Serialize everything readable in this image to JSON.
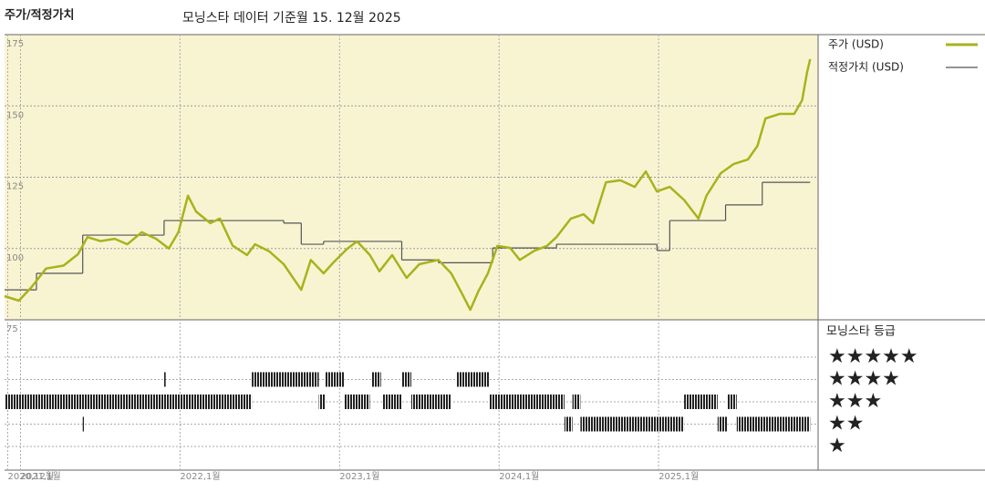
{
  "chart_data": {
    "type": "line",
    "title": "주가/적정가치",
    "subtitle": "모닝스타 데이터 기준월 15. 12월 2025",
    "xlim": [
      2020.9,
      2026.0
    ],
    "xticks": [
      {
        "value": 2020.92,
        "label": "2020,12월"
      },
      {
        "value": 2021.0,
        "label": "2021,1월"
      },
      {
        "value": 2022.0,
        "label": "2022,1월"
      },
      {
        "value": 2023.0,
        "label": "2023,1월"
      },
      {
        "value": 2024.0,
        "label": "2024,1월"
      },
      {
        "value": 2025.0,
        "label": "2025,1월"
      }
    ],
    "ylim": [
      75,
      175
    ],
    "yticks": [
      175,
      150,
      125,
      100,
      75
    ],
    "grid": true,
    "background": "#f8f4d2",
    "series": [
      {
        "name": "주가 (USD)",
        "color": "#a9b21c",
        "x": [
          2020.9,
          2020.99,
          2021.07,
          2021.16,
          2021.27,
          2021.36,
          2021.42,
          2021.5,
          2021.59,
          2021.67,
          2021.76,
          2021.85,
          2021.93,
          2021.99,
          2022.05,
          2022.1,
          2022.19,
          2022.25,
          2022.33,
          2022.42,
          2022.47,
          2022.56,
          2022.65,
          2022.76,
          2022.82,
          2022.9,
          2022.96,
          2023.05,
          2023.11,
          2023.19,
          2023.25,
          2023.33,
          2023.42,
          2023.5,
          2023.62,
          2023.7,
          2023.76,
          2023.82,
          2023.87,
          2023.93,
          2023.99,
          2024.07,
          2024.13,
          2024.22,
          2024.3,
          2024.36,
          2024.45,
          2024.53,
          2024.59,
          2024.67,
          2024.76,
          2024.85,
          2024.92,
          2024.99,
          2025.07,
          2025.16,
          2025.25,
          2025.3,
          2025.39,
          2025.47,
          2025.56,
          2025.62,
          2025.67,
          2025.76,
          2025.85,
          2025.9,
          2025.93,
          2025.95
        ],
        "values": [
          83.3,
          81.7,
          86.5,
          93,
          94,
          98,
          104,
          102.6,
          103.4,
          101.5,
          105.7,
          103.4,
          100,
          105.7,
          118.5,
          113,
          108.9,
          110.5,
          101,
          97.7,
          101.5,
          99,
          94.5,
          85.5,
          96,
          91.3,
          95,
          100,
          102.5,
          97.7,
          92,
          97.7,
          89.7,
          94.5,
          96,
          91.3,
          85,
          78.5,
          85,
          91.3,
          100.9,
          100.2,
          96,
          99.2,
          100.9,
          104,
          110.5,
          112,
          108.9,
          123.2,
          123.9,
          121.6,
          127,
          120,
          121.6,
          117,
          110.5,
          118.5,
          126.4,
          129.6,
          131.2,
          136,
          145.6,
          147.2,
          147.2,
          152,
          161.6,
          166.4
        ]
      },
      {
        "name": "적정가치 (USD)",
        "color": "#555555",
        "step": true,
        "x": [
          2020.9,
          2021.1,
          2021.39,
          2021.9,
          2022.65,
          2022.76,
          2022.9,
          2023.39,
          2023.62,
          2023.96,
          2024.36,
          2024.99,
          2025.07,
          2025.42,
          2025.65,
          2025.95
        ],
        "values": [
          85.5,
          91.3,
          104.7,
          109.8,
          108.9,
          101.5,
          102.5,
          96,
          95,
          100.2,
          101.5,
          99.3,
          109.8,
          115.3,
          123.2,
          123.2
        ]
      }
    ],
    "rating_title": "모닝스타 등급",
    "rating_labels": [
      "★★★★★",
      "★★★★",
      "★★★",
      "★★",
      "★"
    ],
    "rating_periods": [
      {
        "start": 2020.9,
        "end": 2022.45,
        "stars": 3
      },
      {
        "start": 2021.39,
        "end": 2021.4,
        "stars": 2
      },
      {
        "start": 2021.9,
        "end": 2021.91,
        "stars": 4
      },
      {
        "start": 2022.45,
        "end": 2022.87,
        "stars": 4
      },
      {
        "start": 2022.87,
        "end": 2022.91,
        "stars": 3
      },
      {
        "start": 2022.91,
        "end": 2023.03,
        "stars": 4
      },
      {
        "start": 2023.03,
        "end": 2023.19,
        "stars": 3
      },
      {
        "start": 2023.2,
        "end": 2023.26,
        "stars": 4
      },
      {
        "start": 2023.27,
        "end": 2023.39,
        "stars": 3
      },
      {
        "start": 2023.39,
        "end": 2023.45,
        "stars": 4
      },
      {
        "start": 2023.45,
        "end": 2023.7,
        "stars": 3
      },
      {
        "start": 2023.73,
        "end": 2023.94,
        "stars": 4
      },
      {
        "start": 2023.94,
        "end": 2024.41,
        "stars": 3
      },
      {
        "start": 2024.41,
        "end": 2024.46,
        "stars": 2
      },
      {
        "start": 2024.46,
        "end": 2024.51,
        "stars": 3
      },
      {
        "start": 2024.51,
        "end": 2025.16,
        "stars": 2
      },
      {
        "start": 2025.16,
        "end": 2025.37,
        "stars": 3
      },
      {
        "start": 2025.37,
        "end": 2025.43,
        "stars": 2
      },
      {
        "start": 2025.43,
        "end": 2025.49,
        "stars": 3
      },
      {
        "start": 2025.49,
        "end": 2025.95,
        "stars": 2
      }
    ]
  }
}
